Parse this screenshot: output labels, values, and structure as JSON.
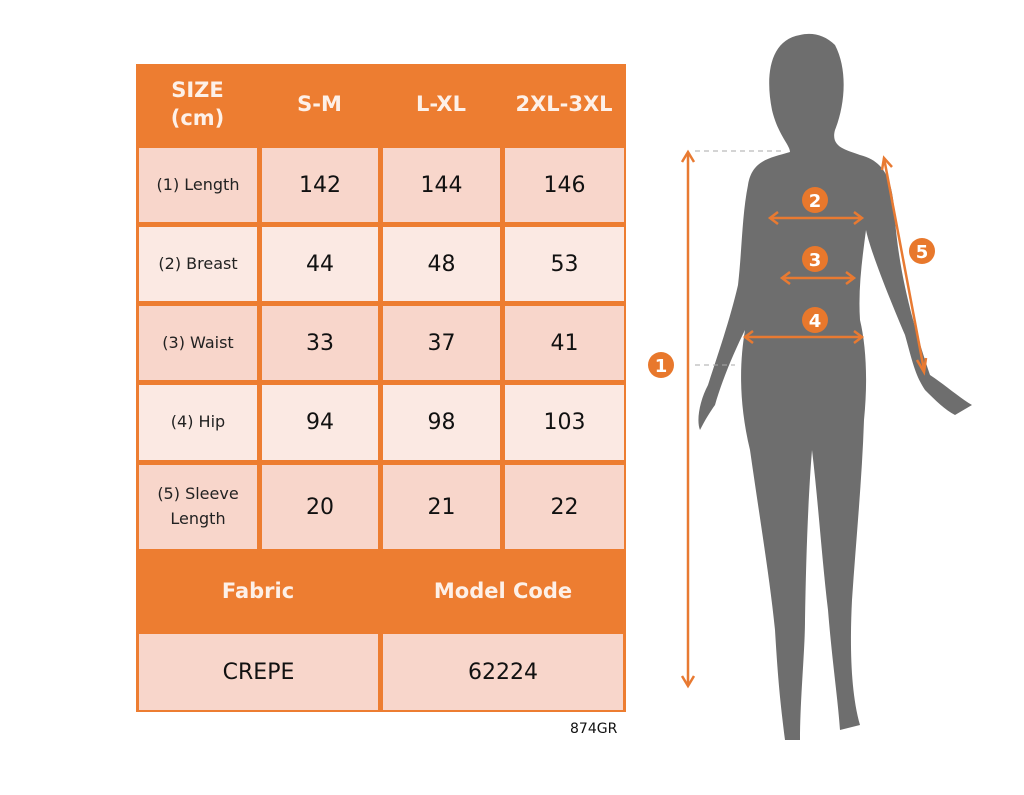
{
  "table": {
    "header": [
      "SIZE\n(cm)",
      "S-M",
      "L-XL",
      "2XL-3XL"
    ],
    "header_size_line1": "SIZE",
    "header_size_line2": "(cm)",
    "rows": [
      {
        "label": "(1) Length",
        "values": [
          "142",
          "144",
          "146"
        ]
      },
      {
        "label": "(2) Breast",
        "values": [
          "44",
          "48",
          "53"
        ]
      },
      {
        "label": "(3) Waist",
        "values": [
          "33",
          "37",
          "41"
        ]
      },
      {
        "label": "(4) Hip",
        "values": [
          "94",
          "98",
          "103"
        ]
      },
      {
        "label_line1": "(5) Sleeve",
        "label_line2": "Length",
        "values": [
          "20",
          "21",
          "22"
        ]
      }
    ],
    "footer_headers": [
      "Fabric",
      "Model Code"
    ],
    "footer_values": [
      "CREPE",
      "62224"
    ]
  },
  "product_code": "874GR",
  "figure": {
    "markers": [
      "1",
      "2",
      "3",
      "4",
      "5"
    ]
  },
  "colors": {
    "accent": "#ed7d31",
    "row_dark": "#f8d6cb",
    "row_light": "#fbe9e3",
    "silhouette": "#6e6e6e"
  }
}
